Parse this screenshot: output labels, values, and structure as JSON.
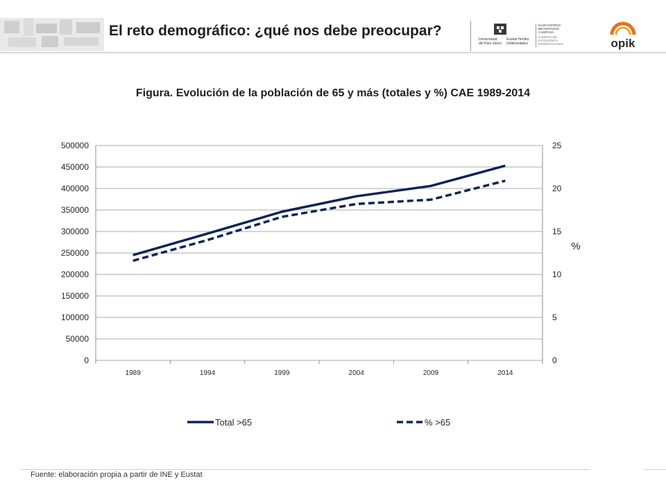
{
  "header": {
    "title": "El reto demográfico: ¿qué nos debe preocupar?",
    "upv_logo": {
      "name_es": [
        "Universidad",
        "del País Vasco"
      ],
      "name_eu": [
        "Euskal Herriko",
        "Unibertsitatea"
      ],
      "campus_eu": [
        "NAZIOARTEKO",
        "BIKAINTASUN",
        "CAMPUSA"
      ],
      "campus_es": [
        "CAMPUS DE",
        "EXCELENCIA",
        "INTERNACIONAL"
      ]
    },
    "opik_logo": "opik"
  },
  "figure_title": "Figura. Evolución de la población de 65 y más (totales y %) CAE 1989-2014",
  "source": "Fuente: elaboración propia a partir de INE y Eustat",
  "colors": {
    "series": "#0e2356",
    "grid": "#8c8c8c",
    "text": "#262626"
  },
  "chart_data": {
    "type": "line",
    "title": "Figura. Evolución de la población de 65 y más (totales y %) CAE 1989-2014",
    "categories": [
      "1989",
      "1994",
      "1999",
      "2004",
      "2009",
      "2014"
    ],
    "y_axis": {
      "ticks": [
        "0",
        "50000",
        "100000",
        "150000",
        "200000",
        "250000",
        "300000",
        "350000",
        "400000",
        "450000",
        "500000"
      ],
      "range": [
        0,
        500000
      ]
    },
    "y2_axis": {
      "label": "%",
      "ticks": [
        "0",
        "5",
        "10",
        "15",
        "20",
        "25"
      ],
      "range": [
        0,
        25
      ]
    },
    "series": [
      {
        "name": "Total >65",
        "axis": "left",
        "style": "solid",
        "values": [
          245000,
          295000,
          346000,
          382000,
          406000,
          453000
        ]
      },
      {
        "name": "% >65",
        "axis": "right",
        "style": "dashed",
        "values": [
          11.6,
          14.0,
          16.7,
          18.2,
          18.7,
          20.9
        ]
      }
    ],
    "grid": true,
    "legend_position": "bottom"
  }
}
